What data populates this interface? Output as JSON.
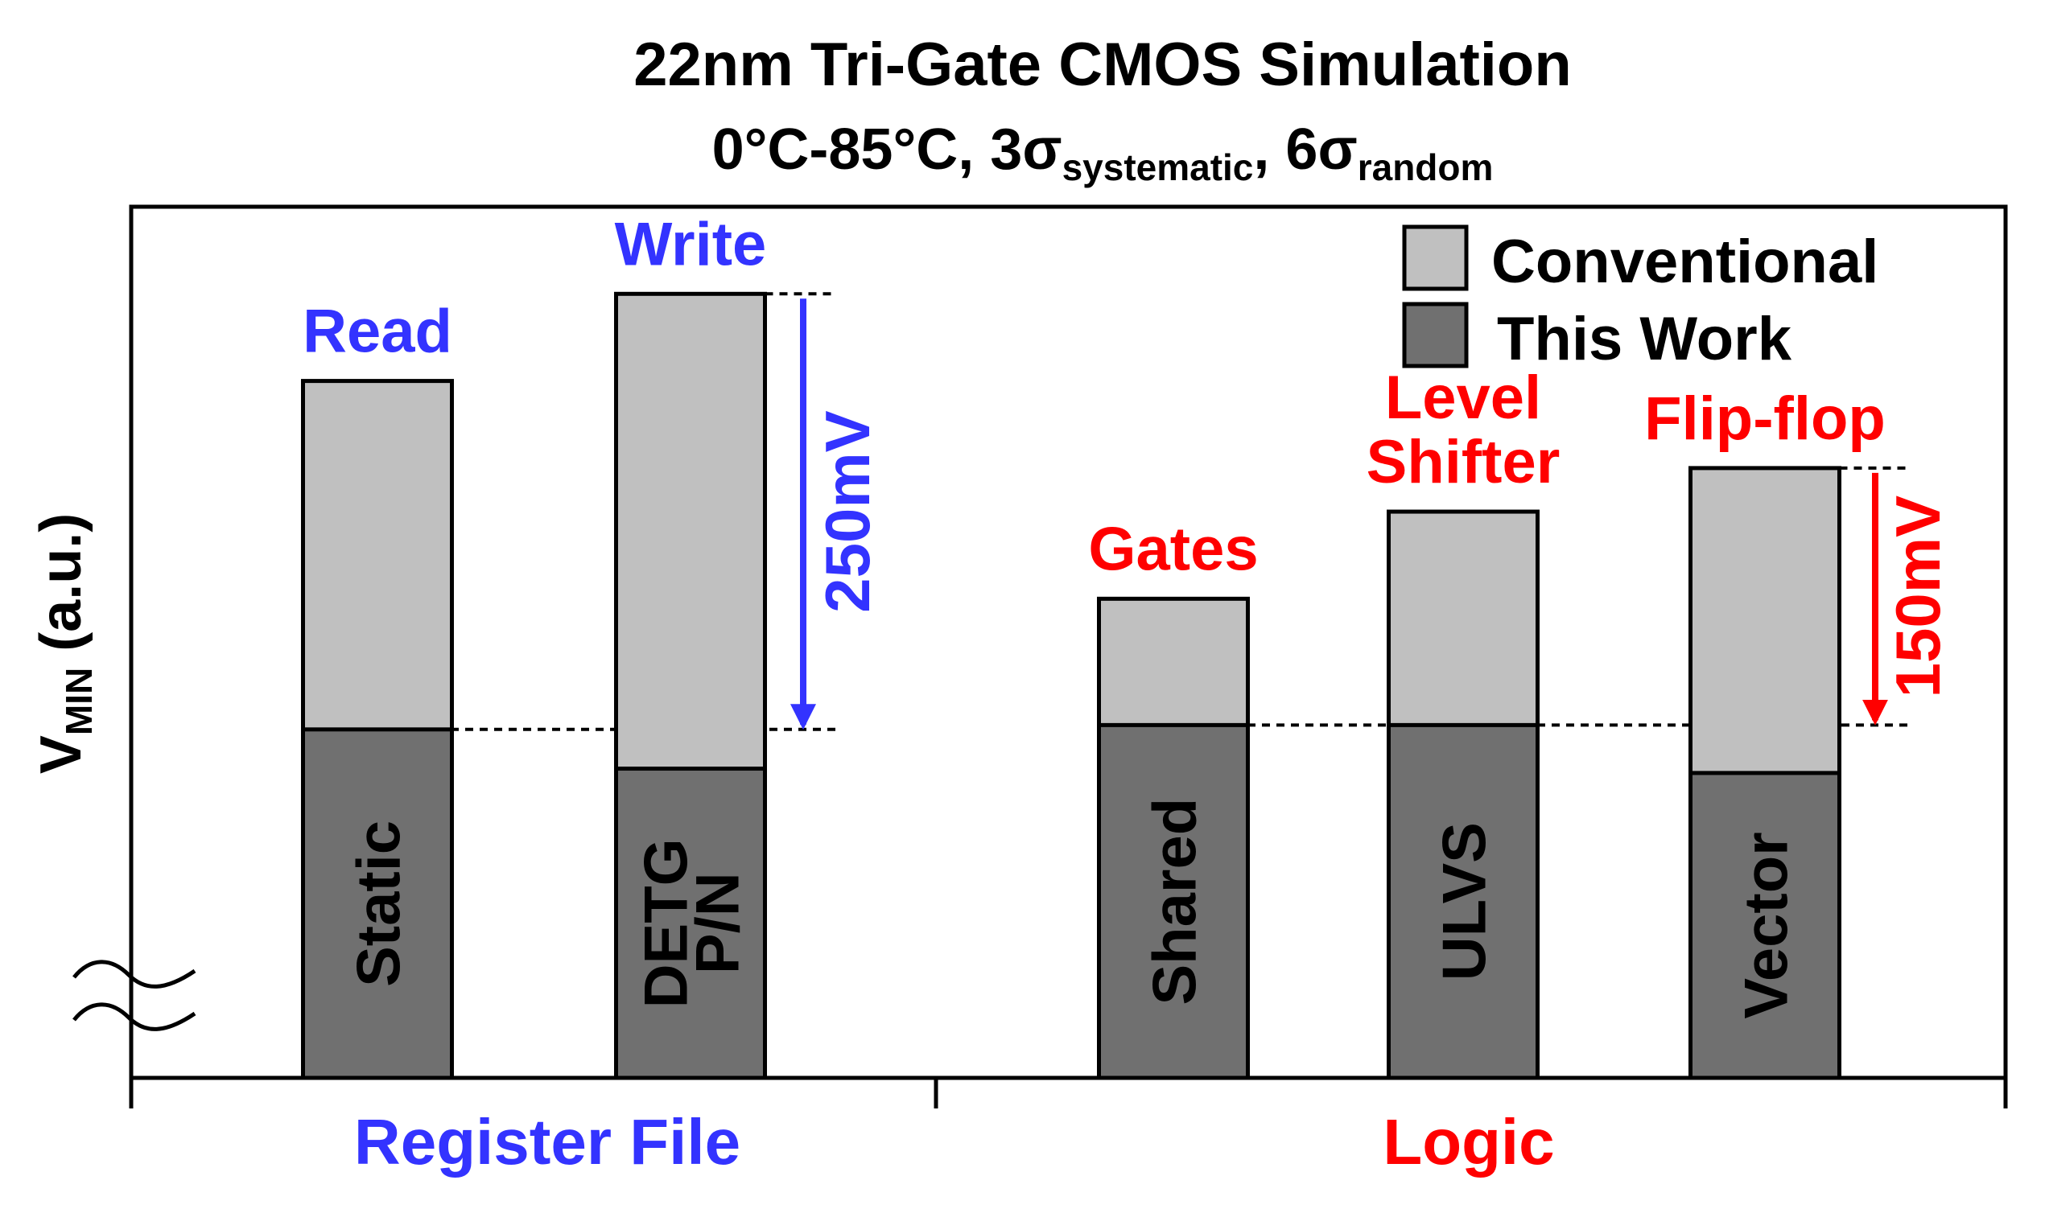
{
  "chart_data": {
    "type": "bar",
    "title": "22nm Tri-Gate CMOS Simulation",
    "subtitle": {
      "prefix": "0°C-85°C, 3σ",
      "sub1": "systematic",
      "middle": ", 6σ",
      "sub2": "random"
    },
    "ylabel": {
      "main": "V",
      "sub": "MIN",
      "suffix": " (a.u.)"
    },
    "y_axis_break": true,
    "ylim": [
      0,
      1
    ],
    "categories": [
      "Static",
      "DETG P/N",
      "Shared",
      "ULVS",
      "Vector"
    ],
    "series": [
      {
        "name": "Conventional",
        "color": "#c0c0c0",
        "values": [
          0.8,
          0.9,
          0.55,
          0.65,
          0.7
        ]
      },
      {
        "name": "This Work",
        "color": "#707070",
        "values": [
          0.4,
          0.355,
          0.405,
          0.405,
          0.35
        ]
      }
    ],
    "bar_labels": [
      [
        "Static"
      ],
      [
        "DETG",
        "P/N"
      ],
      [
        "Shared"
      ],
      [
        "ULVS"
      ],
      [
        "Vector"
      ]
    ],
    "top_labels": [
      {
        "lines": [
          "Read"
        ],
        "color": "#3333ff"
      },
      {
        "lines": [
          "Write"
        ],
        "color": "#3333ff"
      },
      {
        "lines": [
          "Gates"
        ],
        "color": "#ff0000"
      },
      {
        "lines": [
          "Level",
          "Shifter"
        ],
        "color": "#ff0000"
      },
      {
        "lines": [
          "Flip-flop"
        ],
        "color": "#ff0000"
      }
    ],
    "groups": [
      {
        "name": "Register File",
        "color": "#3333ff",
        "categories": [
          "Static",
          "DETG P/N"
        ]
      },
      {
        "name": "Logic",
        "color": "#ff0000",
        "categories": [
          "Shared",
          "ULVS",
          "Vector"
        ]
      }
    ],
    "annotations": [
      {
        "text": "250mV",
        "color": "#3333ff",
        "from_bar": 1,
        "from_value": 0.9,
        "to_value": 0.4
      },
      {
        "text": "150mV",
        "color": "#ff0000",
        "from_bar": 4,
        "from_value": 0.7,
        "to_value": 0.405
      }
    ],
    "legend": {
      "placement": "top-right",
      "entries": [
        "Conventional",
        "This Work"
      ]
    }
  }
}
